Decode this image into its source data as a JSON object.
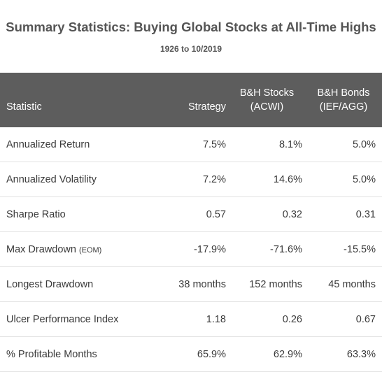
{
  "header": {
    "title": "Summary Statistics: Buying Global Stocks at All-Time Highs",
    "subtitle": "1926 to 10/2019"
  },
  "table": {
    "columns": {
      "statistic": "Statistic",
      "strategy": "Strategy",
      "stocks_line1": "B&H Stocks",
      "stocks_line2": "(ACWI)",
      "bonds_line1": "B&H Bonds",
      "bonds_line2": "(IEF/AGG)"
    },
    "rows": [
      {
        "label": "Annualized Return",
        "note": "",
        "strategy": "7.5%",
        "stocks": "8.1%",
        "bonds": "5.0%"
      },
      {
        "label": "Annualized Volatility",
        "note": "",
        "strategy": "7.2%",
        "stocks": "14.6%",
        "bonds": "5.0%"
      },
      {
        "label": "Sharpe Ratio",
        "note": "",
        "strategy": "0.57",
        "stocks": "0.32",
        "bonds": "0.31"
      },
      {
        "label": "Max Drawdown",
        "note": "(EOM)",
        "strategy": "-17.9%",
        "stocks": "-71.6%",
        "bonds": "-15.5%"
      },
      {
        "label": "Longest Drawdown",
        "note": "",
        "strategy": "38 months",
        "stocks": "152 months",
        "bonds": "45 months"
      },
      {
        "label": "Ulcer Performance Index",
        "note": "",
        "strategy": "1.18",
        "stocks": "0.26",
        "bonds": "0.67"
      },
      {
        "label": "% Profitable Months",
        "note": "",
        "strategy": "65.9%",
        "stocks": "62.9%",
        "bonds": "63.3%"
      }
    ]
  },
  "colors": {
    "header_bg": "#5d5d5d",
    "title_text": "#555555",
    "row_divider": "#e2e2e2"
  }
}
